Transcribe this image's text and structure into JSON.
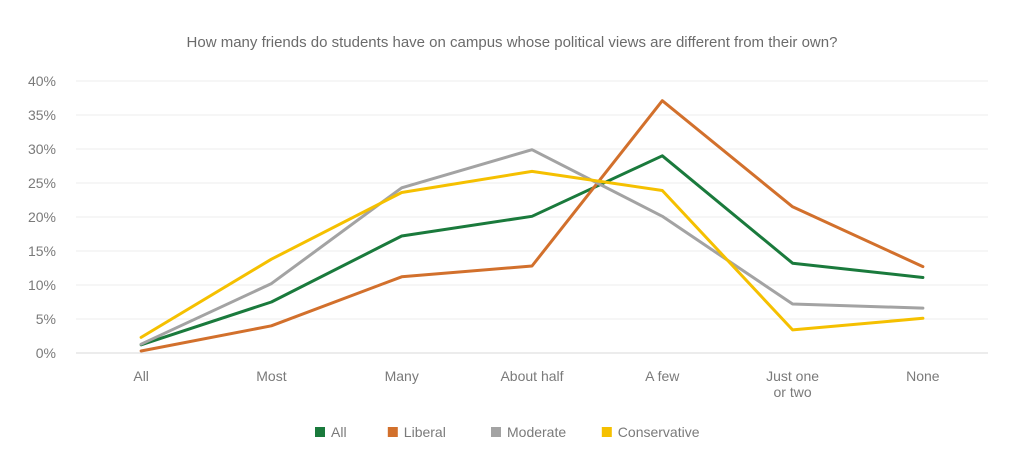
{
  "chart_data": {
    "type": "line",
    "title": "How many friends do students have on campus whose political views are different from their own?",
    "xlabel": "",
    "ylabel": "",
    "ylim": [
      0,
      40
    ],
    "yticks": [
      0,
      5,
      10,
      15,
      20,
      25,
      30,
      35,
      40
    ],
    "y_format": "percent",
    "grid": true,
    "legend_position": "bottom",
    "categories": [
      "All",
      "Most",
      "Many",
      "About half",
      "A few",
      [
        "Just one",
        "or two"
      ],
      "None"
    ],
    "series": [
      {
        "name": "All",
        "color": "#1a7a3c",
        "values": [
          1.2,
          7.5,
          17.2,
          20.1,
          29.0,
          13.2,
          11.1
        ]
      },
      {
        "name": "Liberal",
        "color": "#d2702c",
        "values": [
          0.3,
          4.0,
          11.2,
          12.8,
          37.1,
          21.5,
          12.7
        ]
      },
      {
        "name": "Moderate",
        "color": "#a3a3a3",
        "values": [
          1.3,
          10.2,
          24.3,
          29.9,
          20.1,
          7.2,
          6.6
        ]
      },
      {
        "name": "Conservative",
        "color": "#f5c000",
        "values": [
          2.3,
          13.8,
          23.6,
          26.7,
          23.9,
          3.4,
          5.1
        ]
      }
    ]
  }
}
